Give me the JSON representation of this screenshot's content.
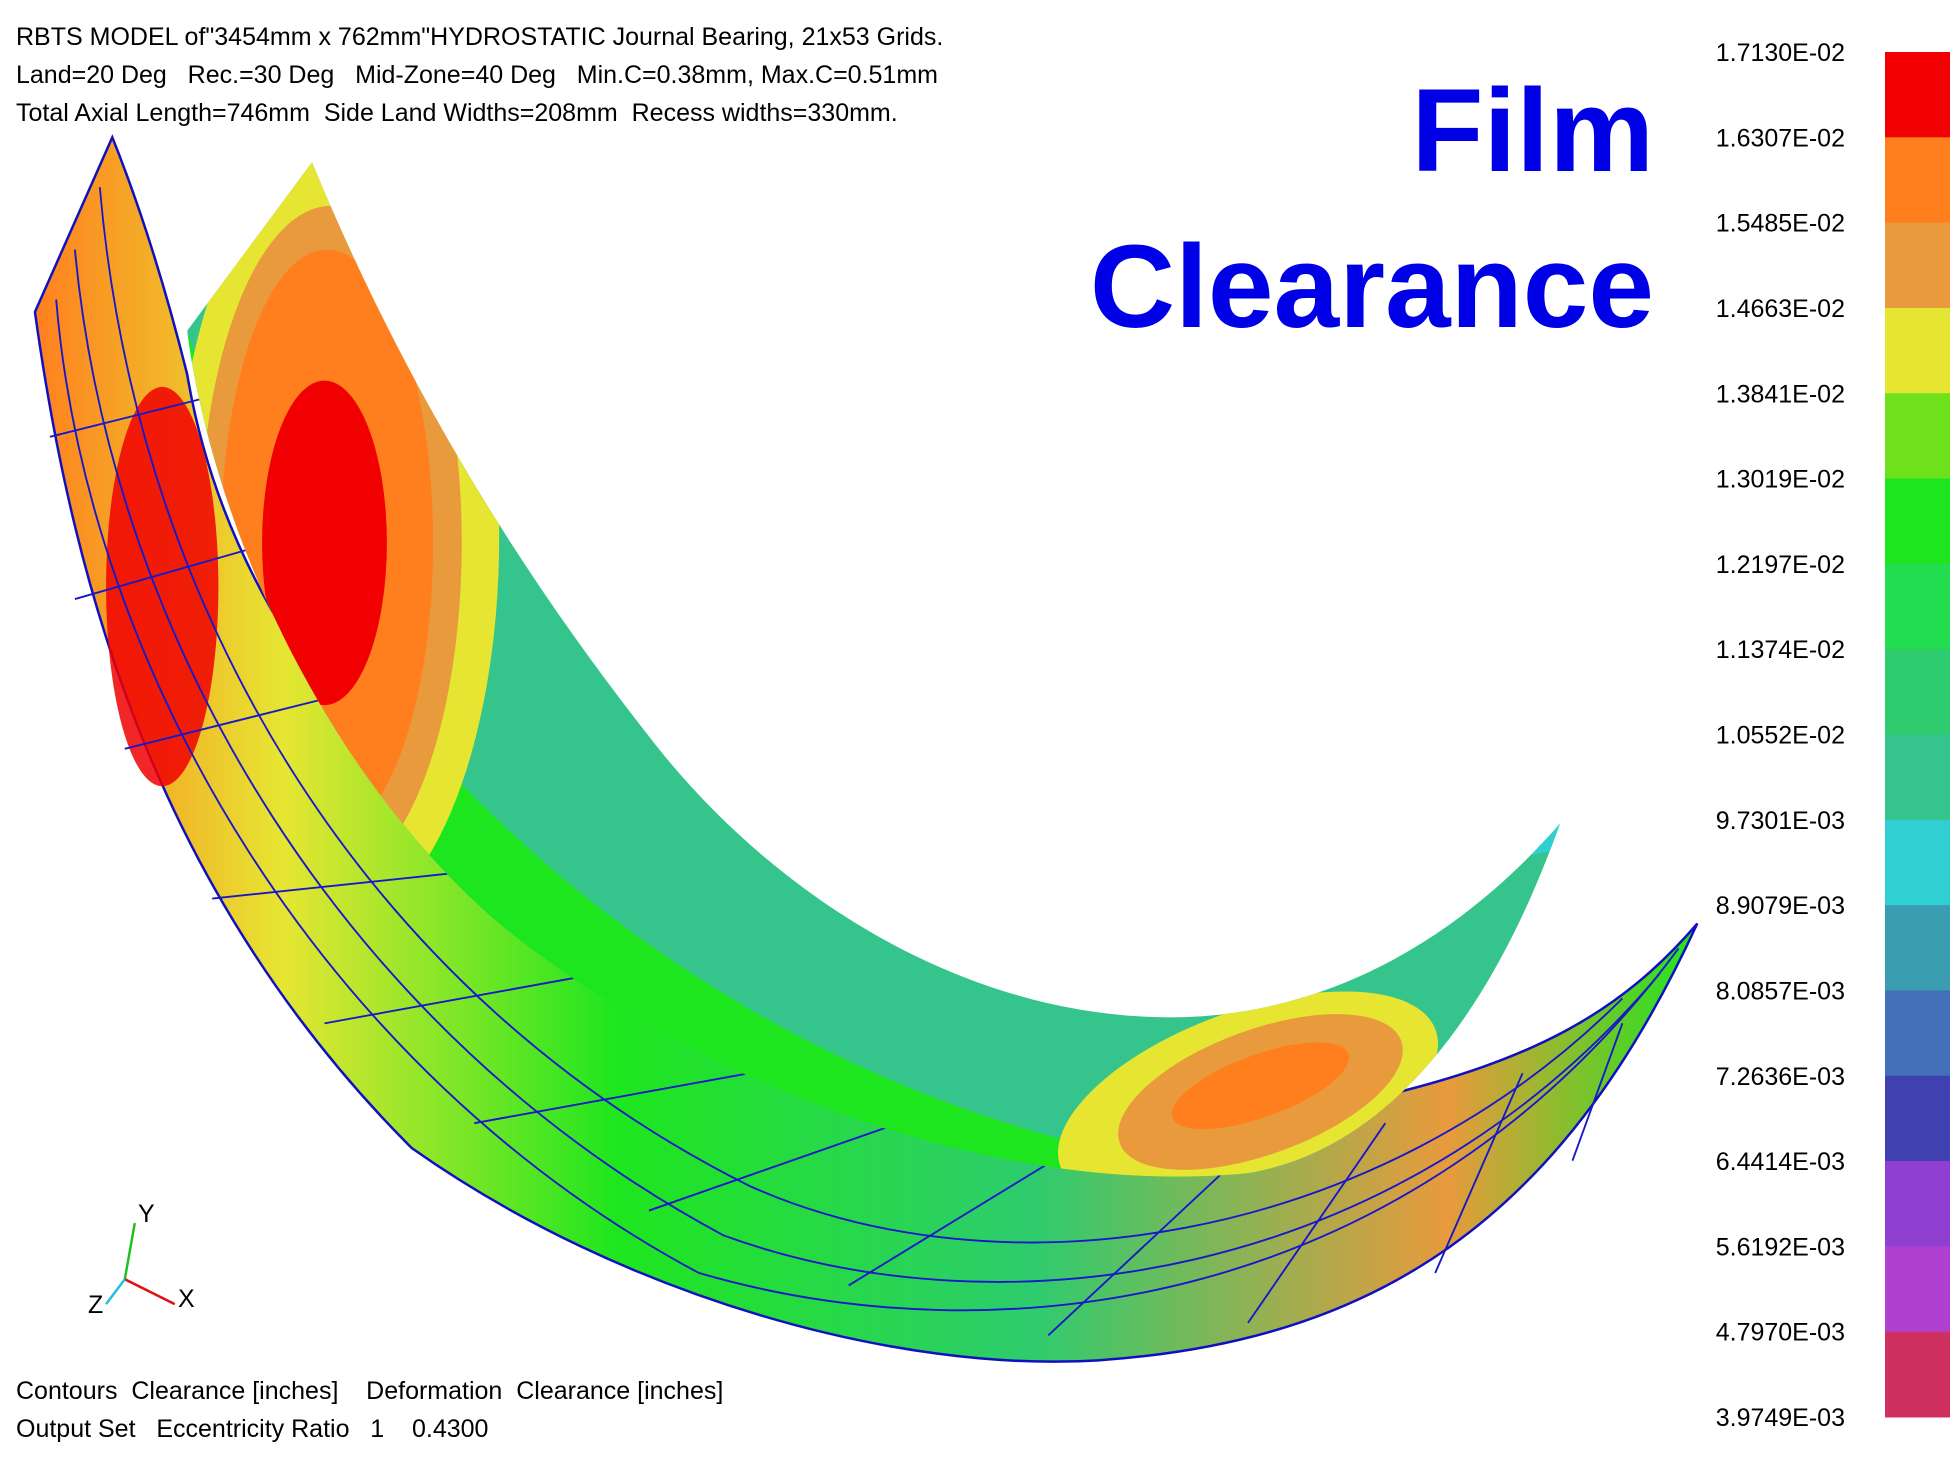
{
  "header": {
    "lines": [
      "RBTS MODEL of\"3454mm x 762mm\"HYDROSTATIC Journal Bearing, 21x53 Grids.",
      "Land=20 Deg   Rec.=30 Deg   Mid-Zone=40 Deg   Min.C=0.38mm, Max.C=0.51mm",
      "Total Axial Length=746mm  Side Land Widths=208mm  Recess widths=330mm."
    ]
  },
  "title": {
    "lines": [
      "Film",
      "Clearance"
    ]
  },
  "legend": {
    "labels": [
      "1.7130E-02",
      "1.6307E-02",
      "1.5485E-02",
      "1.4663E-02",
      "1.3841E-02",
      "1.3019E-02",
      "1.2197E-02",
      "1.1374E-02",
      "1.0552E-02",
      "9.7301E-03",
      "8.9079E-03",
      "8.0857E-03",
      "7.2636E-03",
      "6.4414E-03",
      "5.6192E-03",
      "4.7970E-03",
      "3.9749E-03"
    ],
    "colors": [
      "#f00000",
      "#ff7f1f",
      "#e89a3c",
      "#e6e632",
      "#6ee11c",
      "#1ee61e",
      "#22dd50",
      "#2ecc6e",
      "#35c48c",
      "#2fcfd2",
      "#3a9eb0",
      "#4470b8",
      "#4040b0",
      "#9040d0",
      "#b040d0",
      "#d03060"
    ]
  },
  "triad": {
    "x": "X",
    "y": "Y",
    "z": "Z"
  },
  "footer": {
    "lines": [
      "Contours  Clearance [inches]    Deformation  Clearance [inches]",
      "Output Set   Eccentricity Ratio   1    0.4300"
    ]
  }
}
